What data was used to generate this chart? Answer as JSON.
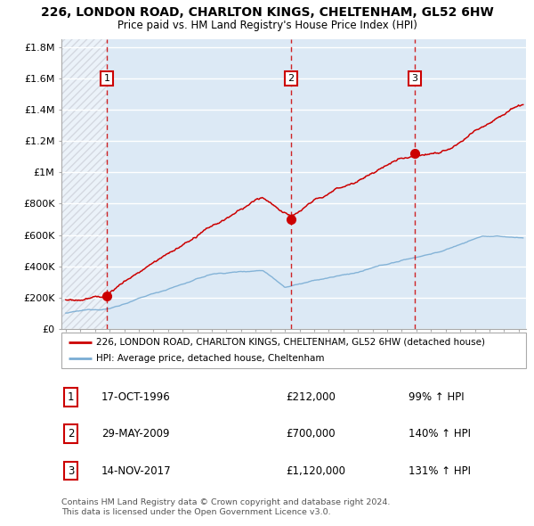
{
  "title1": "226, LONDON ROAD, CHARLTON KINGS, CHELTENHAM, GL52 6HW",
  "title2": "Price paid vs. HM Land Registry's House Price Index (HPI)",
  "ylim": [
    0,
    1850000
  ],
  "yticks": [
    0,
    200000,
    400000,
    600000,
    800000,
    1000000,
    1200000,
    1400000,
    1600000,
    1800000
  ],
  "ytick_labels": [
    "£0",
    "£200K",
    "£400K",
    "£600K",
    "£800K",
    "£1M",
    "£1.2M",
    "£1.4M",
    "£1.6M",
    "£1.8M"
  ],
  "xlim_start": 1993.7,
  "xlim_end": 2025.5,
  "sale_dates": [
    1996.8,
    2009.42,
    2017.87
  ],
  "sale_prices": [
    212000,
    700000,
    1120000
  ],
  "sale_labels": [
    "1",
    "2",
    "3"
  ],
  "legend_line1": "226, LONDON ROAD, CHARLTON KINGS, CHELTENHAM, GL52 6HW (detached house)",
  "legend_line2": "HPI: Average price, detached house, Cheltenham",
  "table_rows": [
    [
      "1",
      "17-OCT-1996",
      "£212,000",
      "99% ↑ HPI"
    ],
    [
      "2",
      "29-MAY-2009",
      "£700,000",
      "140% ↑ HPI"
    ],
    [
      "3",
      "14-NOV-2017",
      "£1,120,000",
      "131% ↑ HPI"
    ]
  ],
  "footnote1": "Contains HM Land Registry data © Crown copyright and database right 2024.",
  "footnote2": "This data is licensed under the Open Government Licence v3.0.",
  "red_color": "#cc0000",
  "blue_color": "#7aadd4",
  "plot_bg": "#dce9f5",
  "hatch_color": "#b0b8c8"
}
